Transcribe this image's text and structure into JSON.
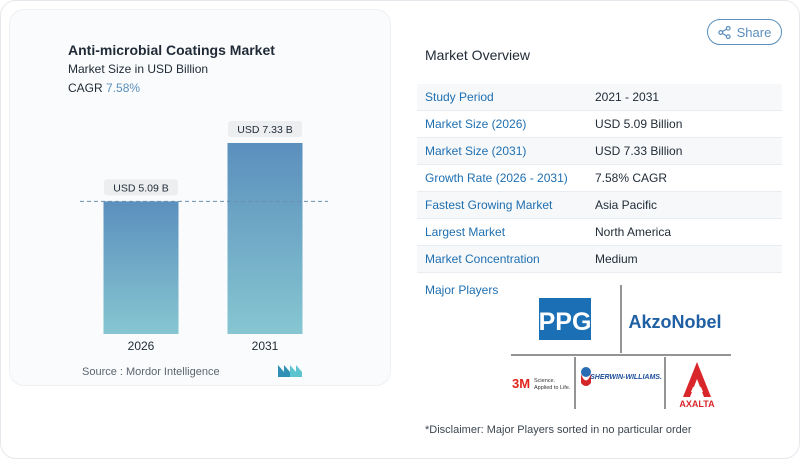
{
  "chart_data": {
    "type": "bar",
    "title": "Anti-microbial Coatings Market",
    "subtitle": "Market Size in USD Billion",
    "cagr_label": "CAGR",
    "cagr_value": "7.58%",
    "categories": [
      "2026",
      "2031"
    ],
    "values": [
      5.09,
      7.33
    ],
    "data_labels": [
      "USD 5.09 B",
      "USD 7.33 B"
    ],
    "ylim": [
      0,
      7.33
    ],
    "colors": {
      "bar_top": "#5b8fbd",
      "bar_bottom": "#86c6d1",
      "reference_line": "#6b8fae"
    }
  },
  "source": {
    "text": "Source :  Mordor Intelligence",
    "logo": "mordor-logo-icon"
  },
  "share": {
    "label": "Share",
    "icon": "share-icon"
  },
  "overview": {
    "title": "Market Overview",
    "rows": [
      {
        "key": "Study Period",
        "value": "2021 - 2031"
      },
      {
        "key": "Market Size (2026)",
        "value": "USD 5.09 Billion"
      },
      {
        "key": "Market Size (2031)",
        "value": "USD 7.33 Billion"
      },
      {
        "key": "Growth Rate (2026 - 2031)",
        "value": "7.58% CAGR"
      },
      {
        "key": "Fastest Growing Market",
        "value": "Asia Pacific"
      },
      {
        "key": "Largest Market",
        "value": "North America"
      },
      {
        "key": "Market Concentration",
        "value": "Medium"
      }
    ]
  },
  "major_players": {
    "label": "Major Players",
    "logos": {
      "ppg": "PPG",
      "akzo": "AkzoNobel",
      "threem": "3M",
      "threem_tag1": "Science.",
      "threem_tag2": "Applied to Life.",
      "sherwin": "SHERWIN-WILLIAMS.",
      "axalta": "AXALTA"
    }
  },
  "disclaimer": "*Disclaimer: Major Players sorted in no particular order"
}
